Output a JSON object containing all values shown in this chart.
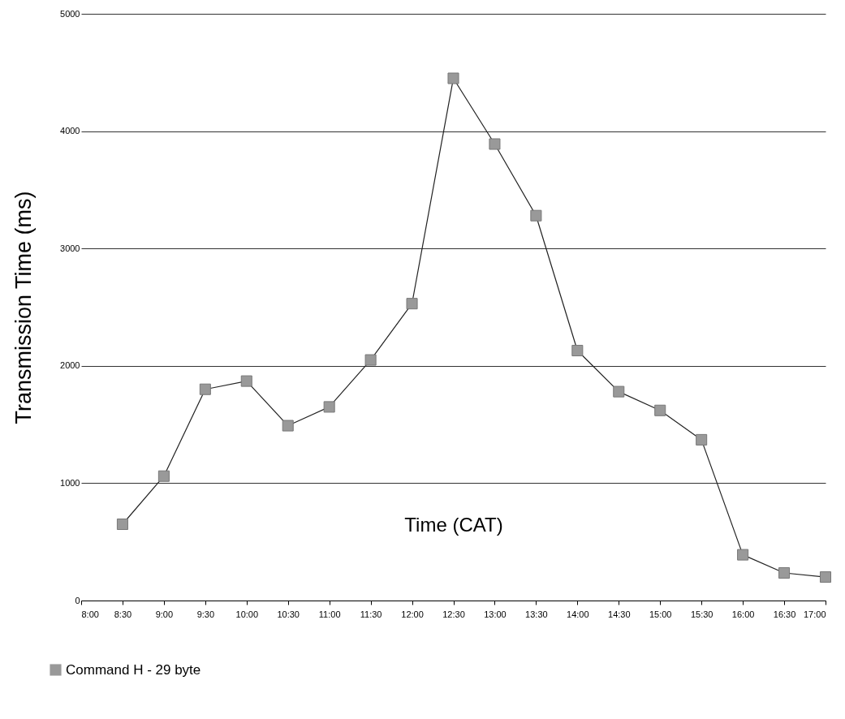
{
  "chart_data": {
    "type": "line",
    "xlabel": "Time (CAT)",
    "ylabel": "Transmission Time (ms)",
    "x": [
      8.5,
      9,
      9.5,
      10,
      10.5,
      11,
      11.5,
      12,
      12.5,
      13,
      13.5,
      14,
      14.5,
      15,
      15.5,
      16,
      16.5,
      17
    ],
    "series": [
      {
        "name": "Command H - 29 byte",
        "color": "#999999",
        "values": [
          650,
          1060,
          1800,
          1870,
          1490,
          1650,
          2050,
          2530,
          4450,
          3890,
          3280,
          2130,
          1780,
          1620,
          1370,
          390,
          235,
          200
        ]
      }
    ],
    "xlim": [
      8,
      17
    ],
    "xticks": [
      {
        "value": 8,
        "label": "8:00"
      },
      {
        "value": 8.5,
        "label": "8:30"
      },
      {
        "value": 9,
        "label": "9:00"
      },
      {
        "value": 9.5,
        "label": "9:30"
      },
      {
        "value": 10,
        "label": "10:00"
      },
      {
        "value": 10.5,
        "label": "10:30"
      },
      {
        "value": 11,
        "label": "11:00"
      },
      {
        "value": 11.5,
        "label": "11:30"
      },
      {
        "value": 12,
        "label": "12:00"
      },
      {
        "value": 12.5,
        "label": "12:30"
      },
      {
        "value": 13,
        "label": "13:00"
      },
      {
        "value": 13.5,
        "label": "13:30"
      },
      {
        "value": 14,
        "label": "14:00"
      },
      {
        "value": 14.5,
        "label": "14:30"
      },
      {
        "value": 15,
        "label": "15:00"
      },
      {
        "value": 15.5,
        "label": "15:30"
      },
      {
        "value": 16,
        "label": "16:00"
      },
      {
        "value": 16.5,
        "label": "16:30"
      },
      {
        "value": 17,
        "label": "17:00"
      }
    ],
    "ylim": [
      0,
      5000
    ],
    "yticks": [
      0,
      1000,
      2000,
      3000,
      4000,
      5000
    ],
    "grid": "y",
    "legend": "bottom left",
    "marker": "square",
    "line_style": "solid"
  }
}
